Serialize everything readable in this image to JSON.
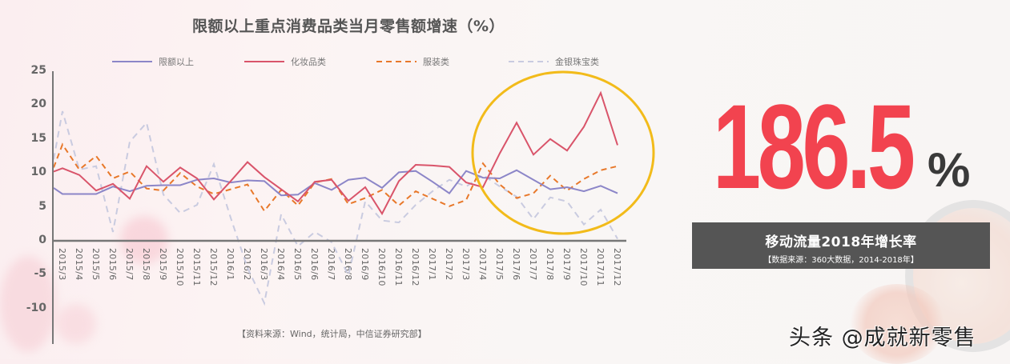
{
  "chart_title": "限额以上重点消费品类当月零售额增速（%）",
  "legend": [
    {
      "label": "限额以上",
      "color": "#8c86c8",
      "style": "solid"
    },
    {
      "label": "化妆品类",
      "color": "#d9546a",
      "style": "solid"
    },
    {
      "label": "服装类",
      "color": "#e8782a",
      "style": "dashed"
    },
    {
      "label": "金银珠宝类",
      "color": "#c9cbe0",
      "style": "dashed"
    }
  ],
  "source_note": "【资料来源：Wind，统计局，中信证券研究部】",
  "highlight": {
    "label": "186.5",
    "unit": "%",
    "caption": "移动流量2018年增长率",
    "caption_source": "【数据来源：360大数据，2014-2018年】"
  },
  "watermark": "头条 @成就新零售",
  "chart_data": {
    "type": "line",
    "title": "限额以上重点消费品类当月零售额增速（%）",
    "xlabel": "",
    "ylabel": "",
    "ylim": [
      -15,
      25
    ],
    "yticks": [
      25,
      20,
      15,
      10,
      5,
      0,
      -5,
      -10
    ],
    "grid": false,
    "legend_position": "top",
    "categories": [
      "2015/3",
      "2015/4",
      "2015/5",
      "2015/6",
      "2015/7",
      "2015/8",
      "2015/9",
      "2015/10",
      "2015/11",
      "2015/12",
      "2016/1",
      "2016/2",
      "2016/3",
      "2016/4",
      "2016/5",
      "2016/6",
      "2016/7",
      "2016/8",
      "2016/9",
      "2016/10",
      "2016/11",
      "2016/12",
      "2017/1",
      "2017/2",
      "2017/3",
      "2017/4",
      "2017/5",
      "2017/6",
      "2017/7",
      "2017/8",
      "2017/9",
      "2017/10",
      "2017/11",
      "2017/12"
    ],
    "series": [
      {
        "name": "限额以上",
        "start": 7.8,
        "values": [
          6.9,
          6.9,
          6.9,
          8.0,
          7.3,
          8.1,
          8.2,
          8.2,
          9.0,
          9.2,
          8.6,
          8.9,
          8.8,
          6.7,
          6.8,
          8.5,
          7.5,
          9.0,
          9.3,
          7.8,
          10.1,
          10.3,
          8.7,
          7.0,
          10.3,
          9.3,
          9.2,
          10.4,
          9.0,
          7.6,
          7.9,
          7.3,
          8.1,
          7.0
        ]
      },
      {
        "name": "化妆品类",
        "start": 10.2,
        "values": [
          10.7,
          9.7,
          7.4,
          8.4,
          6.2,
          11.0,
          8.7,
          10.8,
          9.2,
          6.1,
          8.8,
          11.6,
          9.4,
          7.6,
          5.8,
          8.7,
          9.0,
          5.9,
          7.9,
          4.0,
          8.8,
          11.2,
          11.1,
          10.9,
          8.6,
          7.9,
          12.9,
          17.4,
          12.7,
          15.0,
          13.3,
          16.8,
          21.8,
          14.1
        ]
      },
      {
        "name": "服装类",
        "start": 10.8,
        "values": [
          14.2,
          10.5,
          12.5,
          9.2,
          10.2,
          7.7,
          7.4,
          10.0,
          8.0,
          6.9,
          7.6,
          8.3,
          4.4,
          7.5,
          5.2,
          8.6,
          9.1,
          5.4,
          6.3,
          7.5,
          5.2,
          7.3,
          6.2,
          5.1,
          6.0,
          11.4,
          8.3,
          6.3,
          7.0,
          9.6,
          7.4,
          9.1,
          10.4,
          11.0
        ]
      },
      {
        "name": "金银珠宝类",
        "start": 12.0,
        "values": [
          19.1,
          10.5,
          11.0,
          1.3,
          14.6,
          17.4,
          6.8,
          4.1,
          5.3,
          11.3,
          3.4,
          -4.0,
          -9.2,
          3.9,
          -0.8,
          1.3,
          -0.2,
          -5.1,
          5.8,
          3.0,
          2.7,
          5.3,
          7.3,
          9.0,
          8.0,
          9.7,
          8.0,
          6.5,
          3.2,
          6.4,
          5.8,
          2.4,
          4.6,
          0.3
        ]
      }
    ]
  }
}
